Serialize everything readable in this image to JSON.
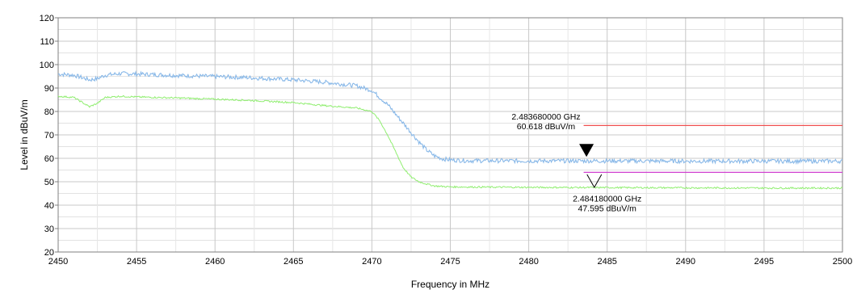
{
  "chart_data": {
    "type": "line",
    "title": "",
    "xlabel": "Frequency in MHz",
    "ylabel": "Level in dBuV/m",
    "xlim": [
      2450,
      2500
    ],
    "ylim": [
      20,
      120
    ],
    "x_ticks": [
      2450,
      2455,
      2460,
      2465,
      2470,
      2475,
      2480,
      2485,
      2490,
      2495,
      2500
    ],
    "y_ticks": [
      20,
      30,
      40,
      50,
      60,
      70,
      80,
      90,
      100,
      110,
      120
    ],
    "grid": true,
    "series": [
      {
        "name": "",
        "color": "#88b8e8",
        "x": [
          2450,
          2451,
          2451.5,
          2452,
          2452.5,
          2453,
          2454,
          2455,
          2458,
          2462,
          2465,
          2467,
          2469,
          2470,
          2470.5,
          2471,
          2471.5,
          2472,
          2472.5,
          2473,
          2473.5,
          2474,
          2474.5,
          2475,
          2476,
          2480,
          2485,
          2490,
          2495,
          2500
        ],
        "y": [
          96,
          95.5,
          94.5,
          93.5,
          94,
          95.5,
          96.2,
          96,
          95.3,
          94.5,
          93.5,
          92.5,
          91,
          89,
          86,
          83,
          79,
          75,
          71,
          67,
          63.5,
          61,
          59.8,
          59.3,
          59,
          58.9,
          58.9,
          58.8,
          58.8,
          58.8
        ]
      },
      {
        "name": "",
        "color": "#90ee70",
        "x": [
          2450,
          2451,
          2451.5,
          2452,
          2452.5,
          2453,
          2454,
          2455,
          2458,
          2462,
          2465,
          2467,
          2469,
          2470,
          2470.5,
          2471,
          2471.5,
          2472,
          2472.5,
          2473,
          2473.5,
          2474,
          2475,
          2480,
          2485,
          2490,
          2495,
          2500
        ],
        "y": [
          86.5,
          86,
          84,
          82,
          83.5,
          86,
          86.5,
          86.2,
          85.7,
          84.8,
          83.8,
          82.5,
          81.5,
          80,
          76,
          70,
          63,
          56,
          52,
          50,
          49,
          48.2,
          47.8,
          47.6,
          47.5,
          47.4,
          47.3,
          47.3
        ]
      }
    ],
    "limit_lines": [
      {
        "x": [
          2483.5,
          2500
        ],
        "y": 74,
        "color": "#f05050"
      },
      {
        "x": [
          2483.5,
          2500
        ],
        "y": 54,
        "color": "#d040d0"
      }
    ],
    "markers": [
      {
        "type": "filled-triangle",
        "x": 2483.68,
        "y": 60.6,
        "label_freq": "2.483680000 GHz",
        "label_level": "60.618 dBuV/m",
        "label_x": 2481.1,
        "label_y": [
          76.5,
          72.5
        ]
      },
      {
        "type": "open-triangle",
        "x": 2484.18,
        "y": 47.6,
        "label_freq": "2.484180000 GHz",
        "label_level": "47.595 dBuV/m",
        "label_x": 2485.0,
        "label_y": [
          41.5,
          37.5
        ]
      }
    ]
  }
}
